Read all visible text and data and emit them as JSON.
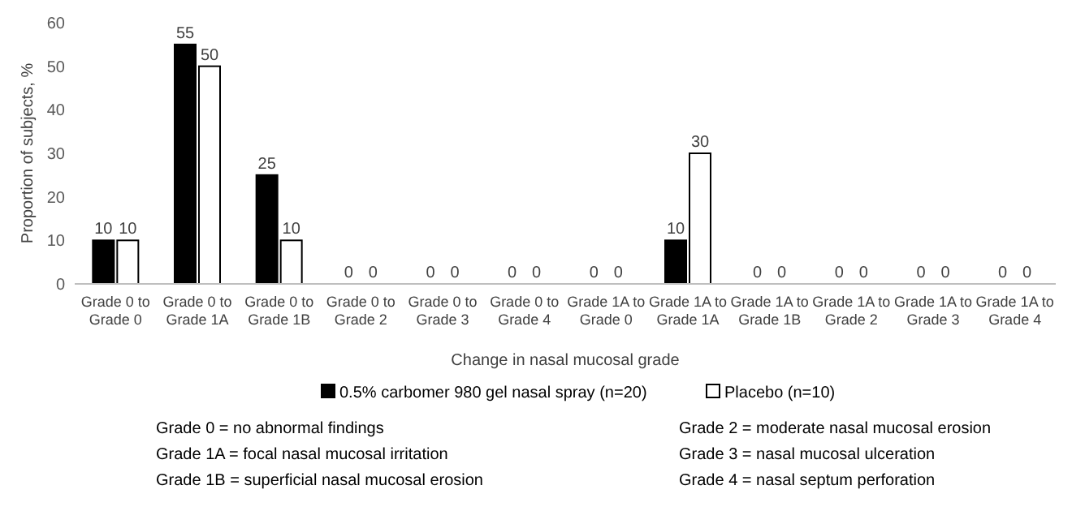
{
  "chart_data": {
    "type": "bar",
    "xlabel": "Change in nasal mucosal grade",
    "ylabel": "Proportion of subjects, %",
    "categories": [
      "Grade 0 to Grade 0",
      "Grade 0 to Grade 1A",
      "Grade 0 to Grade 1B",
      "Grade 0 to Grade 2",
      "Grade 0 to Grade 3",
      "Grade 0 to Grade 4",
      "Grade 1A to Grade 0",
      "Grade 1A to Grade 1A",
      "Grade 1A to Grade 1B",
      "Grade 1A to Grade 2",
      "Grade 1A to Grade 3",
      "Grade 1A to Grade 4"
    ],
    "series": [
      {
        "name": "0.5% carbomer 980 gel nasal spray (n=20)",
        "color": "#000000",
        "values": [
          10,
          55,
          25,
          0,
          0,
          0,
          0,
          10,
          0,
          0,
          0,
          0
        ]
      },
      {
        "name": "Placebo (n=10)",
        "color": "#ffffff",
        "values": [
          10,
          50,
          10,
          0,
          0,
          0,
          0,
          30,
          0,
          0,
          0,
          0
        ]
      }
    ],
    "ylim": [
      0,
      60
    ],
    "yticks": [
      0,
      10,
      20,
      30,
      40,
      50,
      60
    ],
    "data_labels": true,
    "legend": "bottom",
    "annotations": [
      "Grade 0 = no abnormal findings",
      "Grade 1A = focal nasal mucosal irritation",
      "Grade 1B = superficial nasal mucosal erosion",
      "Grade 2 = moderate nasal mucosal erosion",
      "Grade 3 = nasal mucosal ulceration",
      "Grade 4 = nasal septum perforation"
    ]
  }
}
